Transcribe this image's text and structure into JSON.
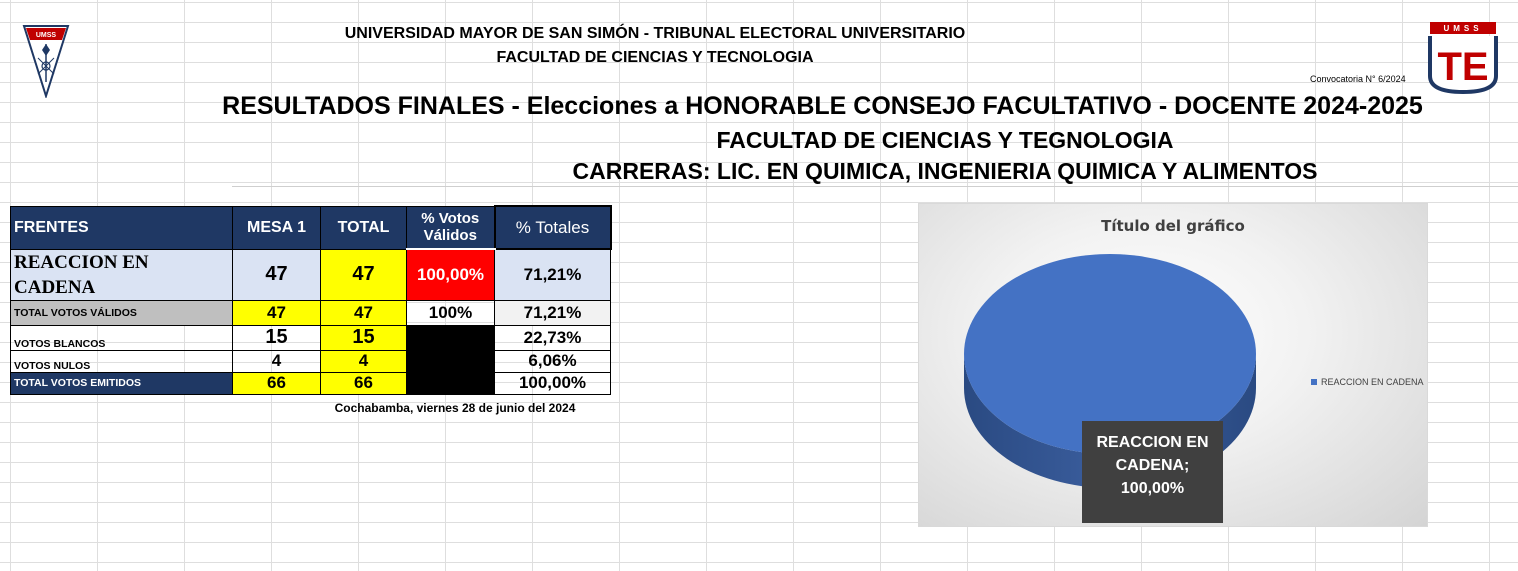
{
  "header": {
    "line1": "UNIVERSIDAD MAYOR DE SAN SIMÓN - TRIBUNAL ELECTORAL UNIVERSITARIO",
    "line2": "FACULTAD DE CIENCIAS Y TECNOLOGIA",
    "convocatoria": "Convocatoria N° 6/2024",
    "logo_left_text": "UMSS",
    "logo_right_top": "UMSS",
    "logo_right_letters": "TE"
  },
  "title": "RESULTADOS FINALES - Elecciones a HONORABLE CONSEJO FACULTATIVO - DOCENTE 2024-2025",
  "subtitle1": "FACULTAD DE CIENCIAS Y TEGNOLOGIA",
  "subtitle2": "CARRERAS: LIC. EN QUIMICA, INGENIERIA QUIMICA Y ALIMENTOS",
  "table": {
    "headers": [
      "FRENTES",
      "MESA 1",
      "TOTAL",
      "% Votos Válidos",
      "% Totales"
    ],
    "rows": [
      {
        "label": "REACCION EN CADENA",
        "mesa1": "47",
        "total": "47",
        "pct_validos": "100,00%",
        "pct_totales": "71,21%"
      },
      {
        "label": "TOTAL VOTOS VÁLIDOS",
        "mesa1": "47",
        "total": "47",
        "pct_validos": "100%",
        "pct_totales": "71,21%"
      },
      {
        "label": "VOTOS BLANCOS",
        "mesa1": "15",
        "total": "15",
        "pct_validos": "",
        "pct_totales": "22,73%"
      },
      {
        "label": "VOTOS NULOS",
        "mesa1": "4",
        "total": "4",
        "pct_validos": "",
        "pct_totales": "6,06%"
      },
      {
        "label": "TOTAL VOTOS EMITIDOS",
        "mesa1": "66",
        "total": "66",
        "pct_validos": "",
        "pct_totales": "100,00%"
      }
    ]
  },
  "footer_date": "Cochabamba, viernes 28 de junio del 2024",
  "colors": {
    "header_navy": "#1f3864",
    "light_blue": "#dae3f3",
    "yellow": "#ffff00",
    "red": "#ff0000",
    "pie_blue": "#4472c4"
  },
  "chart_data": {
    "type": "pie",
    "title": "Título del gráfico",
    "categories": [
      "REACCION EN CADENA"
    ],
    "values": [
      100
    ],
    "data_label": "REACCION EN\nCADENA;\n100,00%",
    "legend": "right",
    "style": "3d"
  }
}
